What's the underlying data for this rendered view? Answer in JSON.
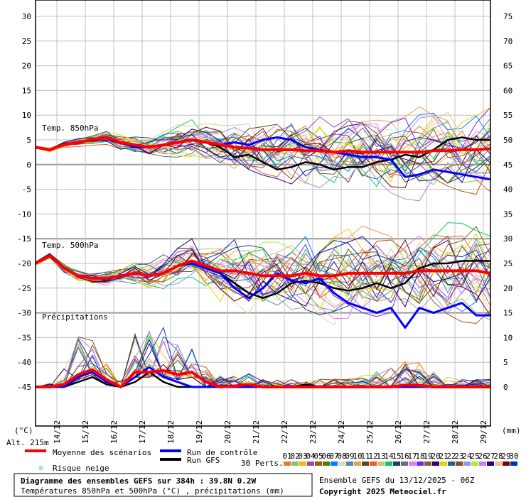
{
  "chart_data": {
    "type": "line",
    "title": "Diagramme des ensembles GEFS sur 384h : 39.8N 0.2W",
    "subtitle": "Températures 850hPa et 500hPa (°C) , précipitations (mm)",
    "run_info": "Ensemble GEFS du 13/12/2025 - 06Z",
    "copyright": "Copyright 2025 Meteociel.fr",
    "left_axis": {
      "label": "(°C)",
      "ylim": [
        -53,
        33
      ],
      "ticks": [
        30,
        25,
        20,
        15,
        10,
        5,
        0,
        -5,
        -10,
        -15,
        -20,
        -25,
        -30,
        -35,
        -40,
        -45
      ]
    },
    "right_axis": {
      "label": "(mm)",
      "ticks": [
        75,
        70,
        65,
        60,
        55,
        50,
        45,
        40,
        35,
        30,
        25,
        20,
        15,
        10,
        5,
        0
      ]
    },
    "altitude": "Alt. 215m",
    "x_hours_step": 12,
    "x_range_hours": [
      0,
      384
    ],
    "x_tick_labels": [
      "14/12",
      "15/12",
      "16/12",
      "17/12",
      "18/12",
      "19/12",
      "20/12",
      "21/12",
      "22/12",
      "23/12",
      "24/12",
      "25/12",
      "26/12",
      "27/12",
      "28/12",
      "29/12"
    ],
    "panels": [
      {
        "label": "Temp. 850hPa",
        "offset": 0,
        "mean": [
          3.5,
          3,
          4,
          4.5,
          5,
          5.5,
          4.5,
          4,
          3.5,
          4,
          4.5,
          5,
          4.5,
          4,
          3.5,
          3.3,
          3,
          3,
          3,
          2.8,
          2.8,
          2.5,
          2.8,
          2.5,
          2.5,
          2.5,
          2.5,
          2.5,
          2.8,
          2.8,
          3,
          3,
          3.2
        ],
        "control": [
          3.5,
          3,
          4,
          4.5,
          5,
          5.5,
          4.5,
          3.5,
          3.5,
          4,
          4.5,
          5,
          4.5,
          4,
          4.5,
          4,
          5,
          5.5,
          5,
          3.5,
          3,
          2.5,
          2,
          1.5,
          1.5,
          1,
          -2.5,
          -2,
          -1,
          -1.5,
          -2,
          -2.5,
          -3
        ],
        "gfs": [
          3.5,
          3,
          4,
          4.5,
          5,
          5.5,
          4.5,
          4,
          3.5,
          4,
          4.5,
          5,
          4.5,
          3.5,
          1.5,
          2,
          0.5,
          -1,
          -0.5,
          0.5,
          0,
          -1,
          -0.5,
          -0.5,
          0.5,
          1,
          2,
          1.5,
          3,
          5,
          5.5,
          5,
          5
        ],
        "spread": [
          0.2,
          0.3,
          0.4,
          0.5,
          0.6,
          0.7,
          0.8,
          1,
          1.2,
          1.4,
          1.6,
          1.8,
          2,
          2.3,
          2.6,
          2.9,
          3.1,
          3.3,
          3.5,
          3.6,
          3.7,
          3.8,
          3.9,
          4,
          4,
          4.1,
          4.2,
          4.2,
          4.3,
          4.3,
          4.4,
          4.4,
          4.5
        ]
      },
      {
        "label": "Temp. 500hPa",
        "offset": 0,
        "mean": [
          -20,
          -18.5,
          -21,
          -22.5,
          -23,
          -23,
          -22.5,
          -22,
          -22.5,
          -22,
          -20.5,
          -19.5,
          -20.5,
          -21.5,
          -21.5,
          -22,
          -22.5,
          -22.5,
          -22.5,
          -22,
          -22.5,
          -22.5,
          -22,
          -22,
          -22,
          -22,
          -22,
          -21.5,
          -21.5,
          -21.5,
          -21.5,
          -21.5,
          -22
        ],
        "control": [
          -20,
          -18.5,
          -21,
          -22.5,
          -23,
          -23,
          -22.5,
          -22,
          -22.5,
          -22,
          -20.5,
          -20,
          -21,
          -22,
          -25,
          -27,
          -25,
          -22,
          -23.5,
          -24,
          -23,
          -26,
          -28,
          -29,
          -30,
          -29,
          -33,
          -29,
          -30,
          -29,
          -28,
          -30.5,
          -30.5
        ],
        "gfs": [
          -20,
          -18.5,
          -21,
          -22.5,
          -23,
          -23,
          -22.5,
          -22,
          -22.5,
          -22,
          -20.5,
          -20,
          -21,
          -22,
          -24,
          -26,
          -27,
          -26,
          -24,
          -23.5,
          -24,
          -25,
          -25.5,
          -25,
          -24,
          -25,
          -24,
          -21,
          -20,
          -20,
          -19.5,
          -19.5,
          -19.5
        ],
        "spread": [
          0.3,
          0.4,
          0.5,
          0.6,
          0.7,
          0.8,
          1,
          1.2,
          1.5,
          1.8,
          2.2,
          2.6,
          3,
          3.3,
          3.6,
          3.8,
          4,
          4.1,
          4.2,
          4.3,
          4.4,
          4.5,
          4.5,
          4.6,
          4.6,
          4.7,
          4.7,
          4.8,
          4.8,
          4.8,
          4.9,
          4.9,
          5
        ]
      },
      {
        "label": "Précipitations",
        "offset": -45,
        "unit": "mm",
        "mean": [
          0,
          0,
          0.5,
          2.5,
          3.5,
          1.5,
          0,
          3,
          3,
          3.3,
          2.5,
          3,
          1,
          0,
          0.2,
          0.5,
          0,
          0,
          0,
          0,
          0,
          0,
          0,
          0,
          0,
          0,
          0.4,
          0.3,
          0,
          0,
          0,
          0,
          0
        ],
        "control": [
          0,
          0,
          0,
          2,
          3,
          1,
          0,
          2,
          4,
          2,
          1,
          0,
          0,
          0,
          0,
          0,
          0,
          0,
          0,
          0,
          0,
          0,
          0,
          0,
          0,
          0,
          0,
          0,
          0,
          0,
          0,
          0,
          0
        ],
        "gfs": [
          0,
          0,
          0,
          1,
          2,
          0.5,
          0,
          1,
          3,
          1,
          0,
          0,
          0,
          0,
          0,
          0,
          0,
          0,
          0,
          0.5,
          0,
          0,
          0,
          0,
          0,
          0,
          0,
          0,
          0,
          0,
          0,
          0,
          0
        ],
        "spread": [
          0,
          0.5,
          2,
          5,
          4,
          2,
          1,
          5,
          6,
          6,
          5,
          3,
          2,
          1.5,
          1.5,
          1.5,
          1,
          1,
          1,
          1,
          1,
          1,
          1,
          1.5,
          2,
          2.5,
          3,
          3,
          2,
          1.5,
          1,
          1,
          1
        ]
      }
    ],
    "legend": {
      "mean": {
        "label": "Moyenne des scénarios",
        "color": "#ff0000"
      },
      "control": {
        "label": "Run de contrôle",
        "color": "#0000ff"
      },
      "gfs": {
        "label": "Run GFS",
        "color": "#000000"
      },
      "snow": {
        "label": "Risque neige",
        "color": "#80c0f0"
      },
      "perts_label": "30 Perts.",
      "perts": [
        {
          "id": "01",
          "color": "#e07b30"
        },
        {
          "id": "02",
          "color": "#88c070"
        },
        {
          "id": "03",
          "color": "#f0c000"
        },
        {
          "id": "04",
          "color": "#9050b0"
        },
        {
          "id": "05",
          "color": "#b05010"
        },
        {
          "id": "06",
          "color": "#508000"
        },
        {
          "id": "07",
          "color": "#0080ff"
        },
        {
          "id": "08",
          "color": "#e8d8b0"
        },
        {
          "id": "09",
          "color": "#4090c0"
        },
        {
          "id": "10",
          "color": "#e8a050"
        },
        {
          "id": "11",
          "color": "#604818"
        },
        {
          "id": "12",
          "color": "#f06020"
        },
        {
          "id": "13",
          "color": "#d0c080"
        },
        {
          "id": "14",
          "color": "#00d060"
        },
        {
          "id": "15",
          "color": "#204060"
        },
        {
          "id": "16",
          "color": "#607080"
        },
        {
          "id": "17",
          "color": "#e080f0"
        },
        {
          "id": "18",
          "color": "#8020f0"
        },
        {
          "id": "19",
          "color": "#806030"
        },
        {
          "id": "20",
          "color": "#300070"
        },
        {
          "id": "21",
          "color": "#f0d000"
        },
        {
          "id": "22",
          "color": "#2060a0"
        },
        {
          "id": "23",
          "color": "#905020"
        },
        {
          "id": "24",
          "color": "#a090f0"
        },
        {
          "id": "25",
          "color": "#a0f040"
        },
        {
          "id": "26",
          "color": "#d080d0"
        },
        {
          "id": "27",
          "color": "#2000a0"
        },
        {
          "id": "28",
          "color": "#e0c8a0"
        },
        {
          "id": "29",
          "color": "#800000"
        },
        {
          "id": "30",
          "color": "#0030c0"
        }
      ]
    }
  }
}
